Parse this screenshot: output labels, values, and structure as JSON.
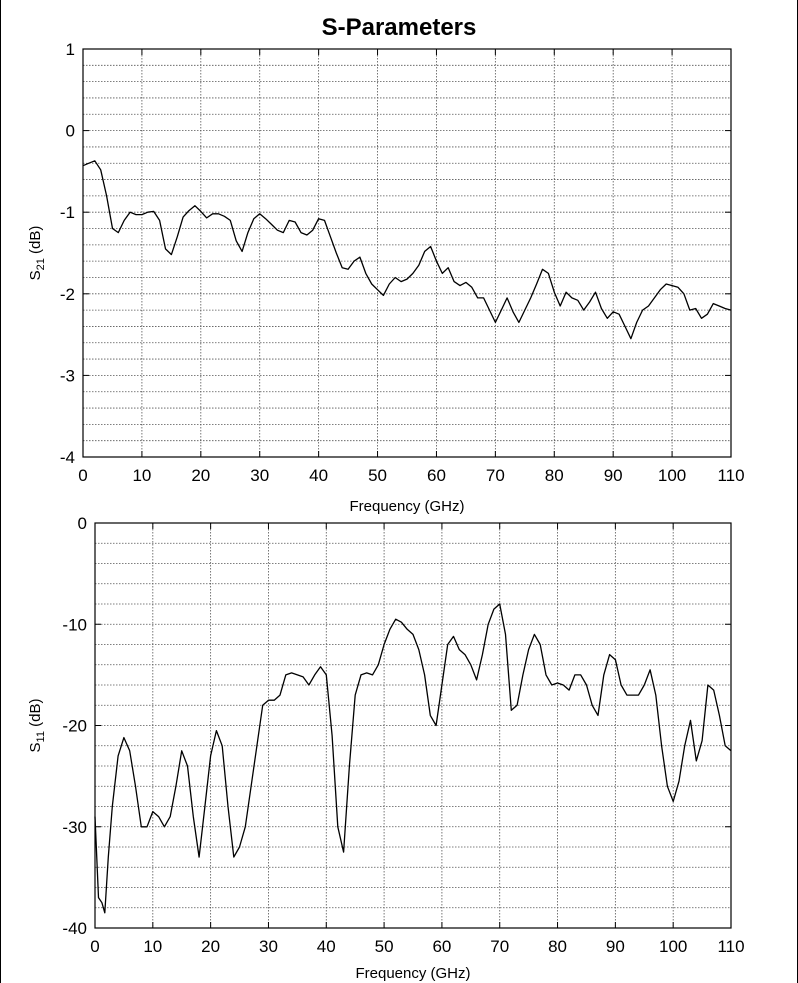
{
  "figure": {
    "title": "S-Parameters"
  },
  "chart_data": [
    {
      "type": "line",
      "title": "S-Parameters",
      "xlabel": "Frequency (GHz)",
      "ylabel": {
        "main": "S",
        "sub": "21",
        "unit": " (dB)"
      },
      "xlim": [
        0,
        110
      ],
      "ylim": [
        -4,
        1
      ],
      "xticks": [
        0,
        10,
        20,
        30,
        40,
        50,
        60,
        70,
        80,
        90,
        100,
        110
      ],
      "yticks": [
        -4,
        -3,
        -2,
        -1,
        0,
        1
      ],
      "grid": true,
      "minor_y_per_major": 5,
      "series": [
        {
          "color": "#000000",
          "points": [
            [
              0,
              -0.43
            ],
            [
              1,
              -0.4
            ],
            [
              2,
              -0.37
            ],
            [
              3,
              -0.48
            ],
            [
              4,
              -0.8
            ],
            [
              5,
              -1.2
            ],
            [
              6,
              -1.25
            ],
            [
              7,
              -1.1
            ],
            [
              8,
              -1.0
            ],
            [
              9,
              -1.03
            ],
            [
              10,
              -1.03
            ],
            [
              11,
              -1.0
            ],
            [
              12,
              -0.99
            ],
            [
              13,
              -1.1
            ],
            [
              14,
              -1.45
            ],
            [
              15,
              -1.52
            ],
            [
              16,
              -1.3
            ],
            [
              17,
              -1.06
            ],
            [
              18,
              -0.98
            ],
            [
              19,
              -0.92
            ],
            [
              20,
              -0.99
            ],
            [
              21,
              -1.07
            ],
            [
              22,
              -1.02
            ],
            [
              23,
              -1.02
            ],
            [
              24,
              -1.05
            ],
            [
              25,
              -1.1
            ],
            [
              26,
              -1.35
            ],
            [
              27,
              -1.48
            ],
            [
              28,
              -1.25
            ],
            [
              29,
              -1.08
            ],
            [
              30,
              -1.02
            ],
            [
              31,
              -1.08
            ],
            [
              32,
              -1.15
            ],
            [
              33,
              -1.22
            ],
            [
              34,
              -1.25
            ],
            [
              35,
              -1.1
            ],
            [
              36,
              -1.12
            ],
            [
              37,
              -1.25
            ],
            [
              38,
              -1.28
            ],
            [
              39,
              -1.22
            ],
            [
              40,
              -1.08
            ],
            [
              41,
              -1.1
            ],
            [
              42,
              -1.3
            ],
            [
              43,
              -1.5
            ],
            [
              44,
              -1.68
            ],
            [
              45,
              -1.7
            ],
            [
              46,
              -1.6
            ],
            [
              47,
              -1.55
            ],
            [
              48,
              -1.75
            ],
            [
              49,
              -1.88
            ],
            [
              50,
              -1.95
            ],
            [
              51,
              -2.02
            ],
            [
              52,
              -1.88
            ],
            [
              53,
              -1.8
            ],
            [
              54,
              -1.85
            ],
            [
              55,
              -1.82
            ],
            [
              56,
              -1.75
            ],
            [
              57,
              -1.65
            ],
            [
              58,
              -1.48
            ],
            [
              59,
              -1.42
            ],
            [
              60,
              -1.6
            ],
            [
              61,
              -1.75
            ],
            [
              62,
              -1.68
            ],
            [
              63,
              -1.85
            ],
            [
              64,
              -1.9
            ],
            [
              65,
              -1.86
            ],
            [
              66,
              -1.92
            ],
            [
              67,
              -2.05
            ],
            [
              68,
              -2.05
            ],
            [
              69,
              -2.2
            ],
            [
              70,
              -2.35
            ],
            [
              71,
              -2.2
            ],
            [
              72,
              -2.05
            ],
            [
              73,
              -2.22
            ],
            [
              74,
              -2.35
            ],
            [
              75,
              -2.2
            ],
            [
              76,
              -2.05
            ],
            [
              77,
              -1.88
            ],
            [
              78,
              -1.7
            ],
            [
              79,
              -1.75
            ],
            [
              80,
              -1.98
            ],
            [
              81,
              -2.15
            ],
            [
              82,
              -1.98
            ],
            [
              83,
              -2.05
            ],
            [
              84,
              -2.08
            ],
            [
              85,
              -2.2
            ],
            [
              86,
              -2.1
            ],
            [
              87,
              -1.98
            ],
            [
              88,
              -2.18
            ],
            [
              89,
              -2.3
            ],
            [
              90,
              -2.22
            ],
            [
              91,
              -2.25
            ],
            [
              92,
              -2.4
            ],
            [
              93,
              -2.55
            ],
            [
              94,
              -2.35
            ],
            [
              95,
              -2.2
            ],
            [
              96,
              -2.15
            ],
            [
              97,
              -2.05
            ],
            [
              98,
              -1.95
            ],
            [
              99,
              -1.88
            ],
            [
              100,
              -1.9
            ],
            [
              101,
              -1.92
            ],
            [
              102,
              -2.0
            ],
            [
              103,
              -2.2
            ],
            [
              104,
              -2.18
            ],
            [
              105,
              -2.3
            ],
            [
              106,
              -2.25
            ],
            [
              107,
              -2.12
            ],
            [
              108,
              -2.15
            ],
            [
              109,
              -2.18
            ],
            [
              110,
              -2.2
            ]
          ]
        }
      ]
    },
    {
      "type": "line",
      "title": "",
      "xlabel": "Frequency (GHz)",
      "ylabel": {
        "main": "S",
        "sub": "11",
        "unit": " (dB)"
      },
      "xlim": [
        0,
        110
      ],
      "ylim": [
        -40,
        0
      ],
      "xticks": [
        0,
        10,
        20,
        30,
        40,
        50,
        60,
        70,
        80,
        90,
        100,
        110
      ],
      "yticks": [
        -40,
        -30,
        -20,
        -10,
        0
      ],
      "grid": true,
      "minor_y_per_major": 5,
      "series": [
        {
          "color": "#000000",
          "points": [
            [
              0,
              -29
            ],
            [
              0.6,
              -37
            ],
            [
              1.2,
              -37.5
            ],
            [
              1.7,
              -38.5
            ],
            [
              2.3,
              -33
            ],
            [
              3,
              -28
            ],
            [
              4,
              -23
            ],
            [
              5,
              -21.2
            ],
            [
              6,
              -22.5
            ],
            [
              7,
              -26
            ],
            [
              8,
              -30
            ],
            [
              9,
              -30
            ],
            [
              10,
              -28.5
            ],
            [
              11,
              -29
            ],
            [
              12,
              -30
            ],
            [
              13,
              -29
            ],
            [
              14,
              -26
            ],
            [
              15,
              -22.5
            ],
            [
              16,
              -24
            ],
            [
              17,
              -29
            ],
            [
              18,
              -33
            ],
            [
              19,
              -28
            ],
            [
              20,
              -23
            ],
            [
              21,
              -20.5
            ],
            [
              22,
              -22
            ],
            [
              23,
              -28
            ],
            [
              24,
              -33
            ],
            [
              25,
              -32
            ],
            [
              26,
              -30
            ],
            [
              27,
              -26
            ],
            [
              28,
              -22
            ],
            [
              29,
              -18
            ],
            [
              30,
              -17.5
            ],
            [
              31,
              -17.5
            ],
            [
              32,
              -17
            ],
            [
              33,
              -15
            ],
            [
              34,
              -14.8
            ],
            [
              35,
              -15
            ],
            [
              36,
              -15.2
            ],
            [
              37,
              -16
            ],
            [
              38,
              -15
            ],
            [
              39,
              -14.2
            ],
            [
              40,
              -15
            ],
            [
              41,
              -21
            ],
            [
              42,
              -30
            ],
            [
              43,
              -32.5
            ],
            [
              44,
              -24
            ],
            [
              45,
              -17
            ],
            [
              46,
              -15
            ],
            [
              47,
              -14.8
            ],
            [
              48,
              -15
            ],
            [
              49,
              -14
            ],
            [
              50,
              -12
            ],
            [
              51,
              -10.5
            ],
            [
              52,
              -9.5
            ],
            [
              53,
              -9.8
            ],
            [
              54,
              -10.5
            ],
            [
              55,
              -11
            ],
            [
              56,
              -12.5
            ],
            [
              57,
              -15
            ],
            [
              58,
              -19
            ],
            [
              59,
              -20
            ],
            [
              60,
              -16
            ],
            [
              61,
              -12
            ],
            [
              62,
              -11.2
            ],
            [
              63,
              -12.5
            ],
            [
              64,
              -13
            ],
            [
              65,
              -14
            ],
            [
              66,
              -15.5
            ],
            [
              67,
              -13
            ],
            [
              68,
              -10
            ],
            [
              69,
              -8.5
            ],
            [
              70,
              -8
            ],
            [
              71,
              -11
            ],
            [
              72,
              -18.5
            ],
            [
              73,
              -18
            ],
            [
              74,
              -15
            ],
            [
              75,
              -12.5
            ],
            [
              76,
              -11
            ],
            [
              77,
              -12
            ],
            [
              78,
              -15
            ],
            [
              79,
              -16
            ],
            [
              80,
              -15.8
            ],
            [
              81,
              -16
            ],
            [
              82,
              -16.5
            ],
            [
              83,
              -15
            ],
            [
              84,
              -15
            ],
            [
              85,
              -16
            ],
            [
              86,
              -18
            ],
            [
              87,
              -19
            ],
            [
              88,
              -15
            ],
            [
              89,
              -13
            ],
            [
              90,
              -13.5
            ],
            [
              91,
              -16
            ],
            [
              92,
              -17
            ],
            [
              93,
              -17
            ],
            [
              94,
              -17
            ],
            [
              95,
              -16
            ],
            [
              96,
              -14.5
            ],
            [
              97,
              -17
            ],
            [
              98,
              -22
            ],
            [
              99,
              -26
            ],
            [
              100,
              -27.5
            ],
            [
              101,
              -25.5
            ],
            [
              102,
              -22
            ],
            [
              103,
              -19.5
            ],
            [
              104,
              -23.5
            ],
            [
              105,
              -21.5
            ],
            [
              106,
              -16
            ],
            [
              107,
              -16.5
            ],
            [
              108,
              -19
            ],
            [
              109,
              -22
            ],
            [
              110,
              -22.5
            ]
          ]
        }
      ]
    }
  ]
}
